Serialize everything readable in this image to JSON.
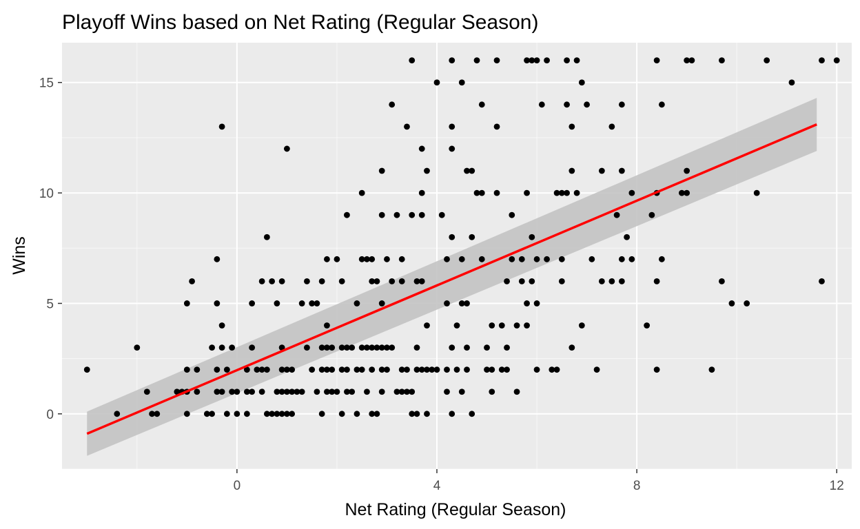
{
  "chart_data": {
    "type": "scatter",
    "title": "Playoff Wins based on Net Rating (Regular Season)",
    "xlabel": "Net Rating (Regular Season)",
    "ylabel": "Wins",
    "xlim": [
      -3.5,
      12.3
    ],
    "ylim": [
      -2.5,
      16.8
    ],
    "xticks": [
      0,
      4,
      8,
      12
    ],
    "yticks": [
      0,
      5,
      10,
      15
    ],
    "grid": true,
    "colors": {
      "panel": "#ebebeb",
      "grid_major": "#ffffff",
      "points": "#000000",
      "fit_line": "#ff0000",
      "confidence_band": "#c3c3c3"
    },
    "trend": {
      "method": "linear",
      "x": [
        -3.0,
        11.6
      ],
      "y": [
        -0.9,
        13.1
      ],
      "ci_lower": [
        -1.9,
        11.9
      ],
      "ci_upper": [
        0.1,
        14.3
      ]
    },
    "points": [
      [
        -3.0,
        2
      ],
      [
        -2.4,
        0
      ],
      [
        -2.0,
        3
      ],
      [
        -1.8,
        1
      ],
      [
        -1.7,
        0
      ],
      [
        -1.6,
        0
      ],
      [
        -1.2,
        1
      ],
      [
        -1.1,
        1
      ],
      [
        -1.0,
        5
      ],
      [
        -1.0,
        2
      ],
      [
        -1.0,
        1
      ],
      [
        -1.0,
        0
      ],
      [
        -0.9,
        6
      ],
      [
        -0.8,
        2
      ],
      [
        -0.8,
        1
      ],
      [
        -0.6,
        0
      ],
      [
        -0.5,
        3
      ],
      [
        -0.5,
        0
      ],
      [
        -0.4,
        7
      ],
      [
        -0.4,
        5
      ],
      [
        -0.4,
        2
      ],
      [
        -0.4,
        1
      ],
      [
        -0.3,
        13
      ],
      [
        -0.3,
        4
      ],
      [
        -0.3,
        3
      ],
      [
        -0.3,
        1
      ],
      [
        -0.2,
        2
      ],
      [
        -0.2,
        0
      ],
      [
        -0.1,
        3
      ],
      [
        -0.1,
        1
      ],
      [
        0.0,
        1
      ],
      [
        0.0,
        0
      ],
      [
        0.2,
        2
      ],
      [
        0.2,
        1
      ],
      [
        0.2,
        0
      ],
      [
        0.3,
        3
      ],
      [
        0.3,
        1
      ],
      [
        0.3,
        5
      ],
      [
        0.4,
        2
      ],
      [
        0.5,
        6
      ],
      [
        0.5,
        2
      ],
      [
        0.5,
        1
      ],
      [
        0.6,
        8
      ],
      [
        0.6,
        2
      ],
      [
        0.6,
        0
      ],
      [
        0.7,
        6
      ],
      [
        0.7,
        0
      ],
      [
        0.8,
        5
      ],
      [
        0.8,
        1
      ],
      [
        0.8,
        0
      ],
      [
        0.9,
        6
      ],
      [
        0.9,
        3
      ],
      [
        0.9,
        2
      ],
      [
        0.9,
        1
      ],
      [
        0.9,
        0
      ],
      [
        1.0,
        12
      ],
      [
        1.0,
        2
      ],
      [
        1.0,
        1
      ],
      [
        1.0,
        0
      ],
      [
        1.1,
        2
      ],
      [
        1.1,
        1
      ],
      [
        1.1,
        0
      ],
      [
        1.2,
        1
      ],
      [
        1.3,
        5
      ],
      [
        1.3,
        1
      ],
      [
        1.4,
        6
      ],
      [
        1.4,
        3
      ],
      [
        1.5,
        5
      ],
      [
        1.5,
        2
      ],
      [
        1.6,
        5
      ],
      [
        1.6,
        1
      ],
      [
        1.7,
        0
      ],
      [
        1.7,
        2
      ],
      [
        1.7,
        6
      ],
      [
        1.7,
        3
      ],
      [
        1.8,
        7
      ],
      [
        1.8,
        4
      ],
      [
        1.8,
        3
      ],
      [
        1.8,
        2
      ],
      [
        1.8,
        1
      ],
      [
        1.9,
        3
      ],
      [
        1.9,
        2
      ],
      [
        1.9,
        1
      ],
      [
        2.0,
        7
      ],
      [
        2.0,
        1
      ],
      [
        2.1,
        6
      ],
      [
        2.1,
        3
      ],
      [
        2.1,
        2
      ],
      [
        2.1,
        0
      ],
      [
        2.2,
        9
      ],
      [
        2.2,
        3
      ],
      [
        2.2,
        2
      ],
      [
        2.2,
        1
      ],
      [
        2.3,
        3
      ],
      [
        2.3,
        1
      ],
      [
        2.4,
        5
      ],
      [
        2.4,
        2
      ],
      [
        2.4,
        0
      ],
      [
        2.5,
        10
      ],
      [
        2.5,
        7
      ],
      [
        2.5,
        3
      ],
      [
        2.5,
        2
      ],
      [
        2.6,
        7
      ],
      [
        2.6,
        3
      ],
      [
        2.6,
        1
      ],
      [
        2.7,
        7
      ],
      [
        2.7,
        6
      ],
      [
        2.7,
        3
      ],
      [
        2.7,
        2
      ],
      [
        2.7,
        0
      ],
      [
        2.8,
        6
      ],
      [
        2.8,
        3
      ],
      [
        2.8,
        0
      ],
      [
        2.9,
        11
      ],
      [
        2.9,
        9
      ],
      [
        2.9,
        5
      ],
      [
        2.9,
        3
      ],
      [
        2.9,
        2
      ],
      [
        2.9,
        1
      ],
      [
        3.0,
        7
      ],
      [
        3.0,
        3
      ],
      [
        3.0,
        2
      ],
      [
        3.1,
        14
      ],
      [
        3.1,
        6
      ],
      [
        3.1,
        3
      ],
      [
        3.2,
        9
      ],
      [
        3.2,
        1
      ],
      [
        3.3,
        7
      ],
      [
        3.3,
        6
      ],
      [
        3.3,
        2
      ],
      [
        3.3,
        1
      ],
      [
        3.4,
        13
      ],
      [
        3.4,
        2
      ],
      [
        3.4,
        1
      ],
      [
        3.5,
        16
      ],
      [
        3.5,
        9
      ],
      [
        3.5,
        1
      ],
      [
        3.5,
        0
      ],
      [
        3.6,
        3
      ],
      [
        3.6,
        6
      ],
      [
        3.6,
        2
      ],
      [
        3.6,
        0
      ],
      [
        3.7,
        12
      ],
      [
        3.7,
        10
      ],
      [
        3.7,
        9
      ],
      [
        3.7,
        6
      ],
      [
        3.7,
        2
      ],
      [
        3.8,
        11
      ],
      [
        3.8,
        4
      ],
      [
        3.8,
        2
      ],
      [
        3.8,
        0
      ],
      [
        3.9,
        2
      ],
      [
        4.0,
        15
      ],
      [
        4.0,
        2
      ],
      [
        4.1,
        9
      ],
      [
        4.2,
        7
      ],
      [
        4.2,
        5
      ],
      [
        4.2,
        2
      ],
      [
        4.2,
        1
      ],
      [
        4.3,
        16
      ],
      [
        4.3,
        13
      ],
      [
        4.3,
        12
      ],
      [
        4.3,
        8
      ],
      [
        4.3,
        3
      ],
      [
        4.3,
        0
      ],
      [
        4.4,
        4
      ],
      [
        4.4,
        2
      ],
      [
        4.5,
        15
      ],
      [
        4.5,
        7
      ],
      [
        4.5,
        5
      ],
      [
        4.5,
        1
      ],
      [
        4.6,
        11
      ],
      [
        4.6,
        5
      ],
      [
        4.6,
        3
      ],
      [
        4.6,
        2
      ],
      [
        4.7,
        11
      ],
      [
        4.7,
        8
      ],
      [
        4.7,
        0
      ],
      [
        4.8,
        16
      ],
      [
        4.8,
        10
      ],
      [
        4.9,
        14
      ],
      [
        4.9,
        10
      ],
      [
        4.9,
        7
      ],
      [
        5.0,
        2
      ],
      [
        5.0,
        3
      ],
      [
        5.1,
        4
      ],
      [
        5.1,
        1
      ],
      [
        5.1,
        2
      ],
      [
        5.2,
        16
      ],
      [
        5.2,
        13
      ],
      [
        5.2,
        10
      ],
      [
        5.3,
        4
      ],
      [
        5.3,
        2
      ],
      [
        5.4,
        6
      ],
      [
        5.4,
        3
      ],
      [
        5.4,
        2
      ],
      [
        5.5,
        9
      ],
      [
        5.5,
        7
      ],
      [
        5.6,
        4
      ],
      [
        5.6,
        1
      ],
      [
        5.7,
        7
      ],
      [
        5.7,
        6
      ],
      [
        5.8,
        16
      ],
      [
        5.8,
        10
      ],
      [
        5.8,
        5
      ],
      [
        5.8,
        4
      ],
      [
        5.9,
        16
      ],
      [
        5.9,
        8
      ],
      [
        5.9,
        6
      ],
      [
        6.0,
        16
      ],
      [
        6.0,
        7
      ],
      [
        6.0,
        2
      ],
      [
        6.0,
        5
      ],
      [
        6.1,
        14
      ],
      [
        6.2,
        16
      ],
      [
        6.2,
        7
      ],
      [
        6.3,
        2
      ],
      [
        6.4,
        2
      ],
      [
        6.4,
        10
      ],
      [
        6.5,
        10
      ],
      [
        6.5,
        7
      ],
      [
        6.5,
        6
      ],
      [
        6.6,
        16
      ],
      [
        6.6,
        10
      ],
      [
        6.6,
        14
      ],
      [
        6.7,
        13
      ],
      [
        6.7,
        11
      ],
      [
        6.7,
        3
      ],
      [
        6.8,
        16
      ],
      [
        6.8,
        10
      ],
      [
        6.9,
        15
      ],
      [
        6.9,
        4
      ],
      [
        7.0,
        14
      ],
      [
        7.1,
        7
      ],
      [
        7.2,
        2
      ],
      [
        7.3,
        11
      ],
      [
        7.3,
        6
      ],
      [
        7.5,
        13
      ],
      [
        7.5,
        6
      ],
      [
        7.6,
        9
      ],
      [
        7.7,
        14
      ],
      [
        7.7,
        11
      ],
      [
        7.7,
        7
      ],
      [
        7.7,
        6
      ],
      [
        7.8,
        8
      ],
      [
        7.9,
        10
      ],
      [
        7.9,
        7
      ],
      [
        8.2,
        4
      ],
      [
        8.3,
        9
      ],
      [
        8.4,
        16
      ],
      [
        8.4,
        10
      ],
      [
        8.4,
        6
      ],
      [
        8.4,
        2
      ],
      [
        8.5,
        14
      ],
      [
        8.5,
        7
      ],
      [
        8.9,
        10
      ],
      [
        9.0,
        16
      ],
      [
        9.0,
        11
      ],
      [
        9.0,
        10
      ],
      [
        9.1,
        16
      ],
      [
        9.5,
        2
      ],
      [
        9.7,
        16
      ],
      [
        9.7,
        6
      ],
      [
        9.9,
        5
      ],
      [
        10.2,
        5
      ],
      [
        10.4,
        10
      ],
      [
        10.6,
        16
      ],
      [
        11.1,
        15
      ],
      [
        11.7,
        16
      ],
      [
        11.7,
        6
      ],
      [
        12.0,
        16
      ]
    ]
  }
}
